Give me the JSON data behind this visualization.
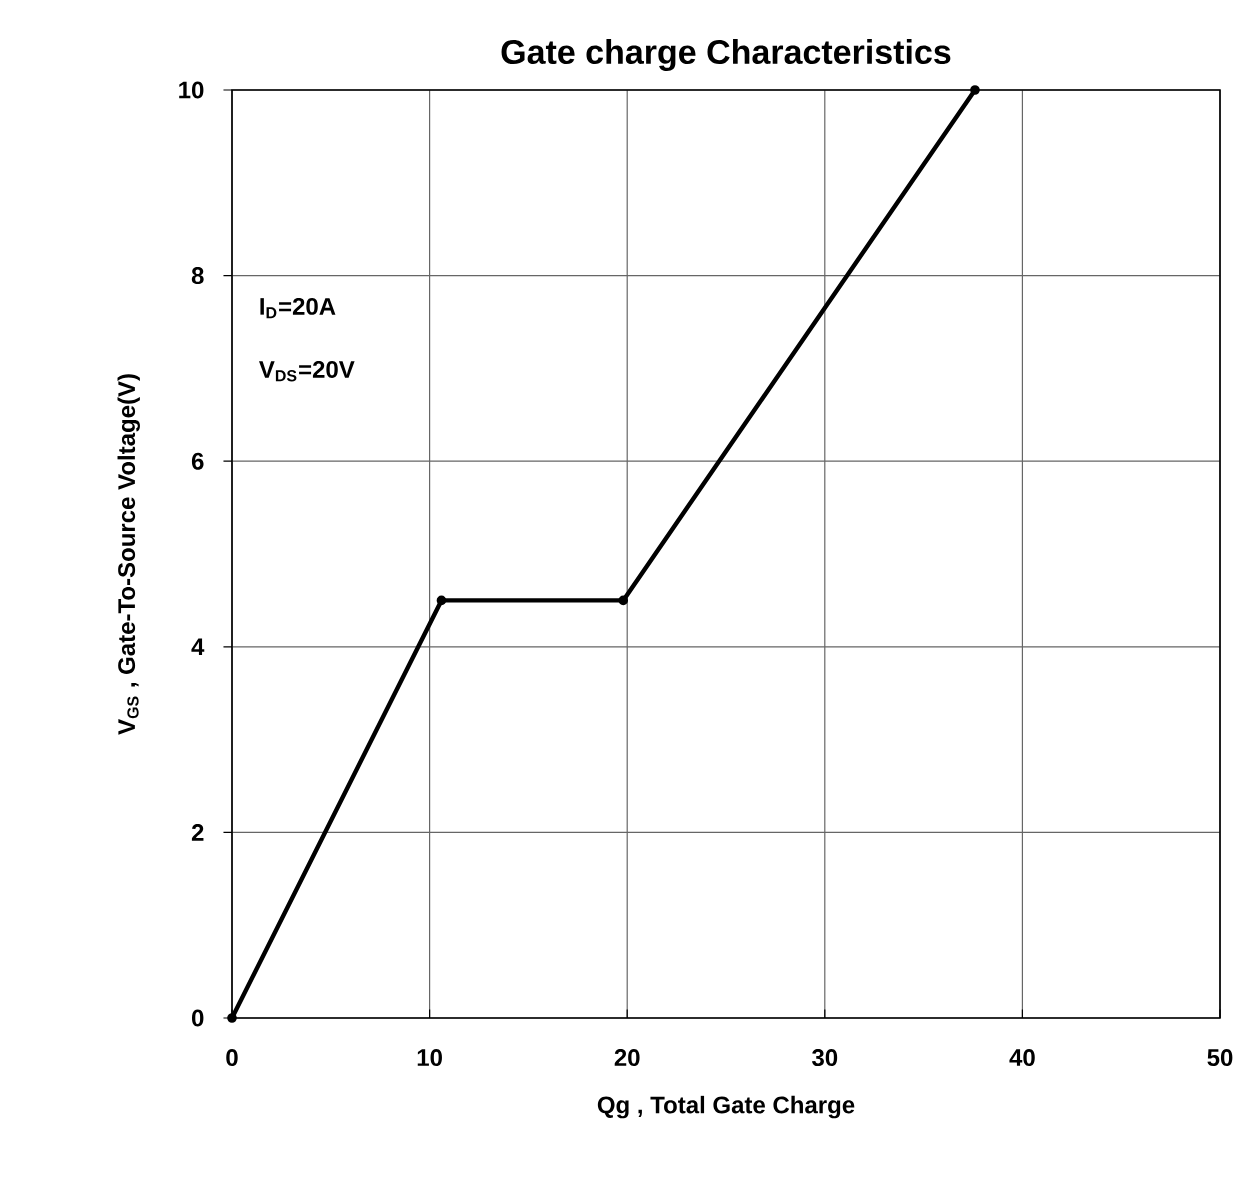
{
  "chart_data": {
    "type": "line",
    "title": "Gate charge Characteristics",
    "xlabel": "Qg , Total Gate Charge",
    "ylabel": "V$_{GS}$ , Gate-To-Source Voltage(V)",
    "annotations": [
      "I$_{D}$=20A",
      "V$_{DS}$=20V"
    ],
    "series": [
      {
        "color": "#000000",
        "x": [
          0,
          10.6,
          19.8,
          37.6
        ],
        "values": [
          0,
          4.5,
          4.5,
          10
        ]
      }
    ],
    "xlim": [
      0,
      50
    ],
    "xticks": [
      0,
      10,
      20,
      30,
      40,
      50
    ],
    "ylim": [
      0,
      10
    ],
    "yticks": [
      0,
      2,
      4,
      6,
      8,
      10
    ],
    "grid": true,
    "marker": "circle",
    "line_style": "solid"
  }
}
